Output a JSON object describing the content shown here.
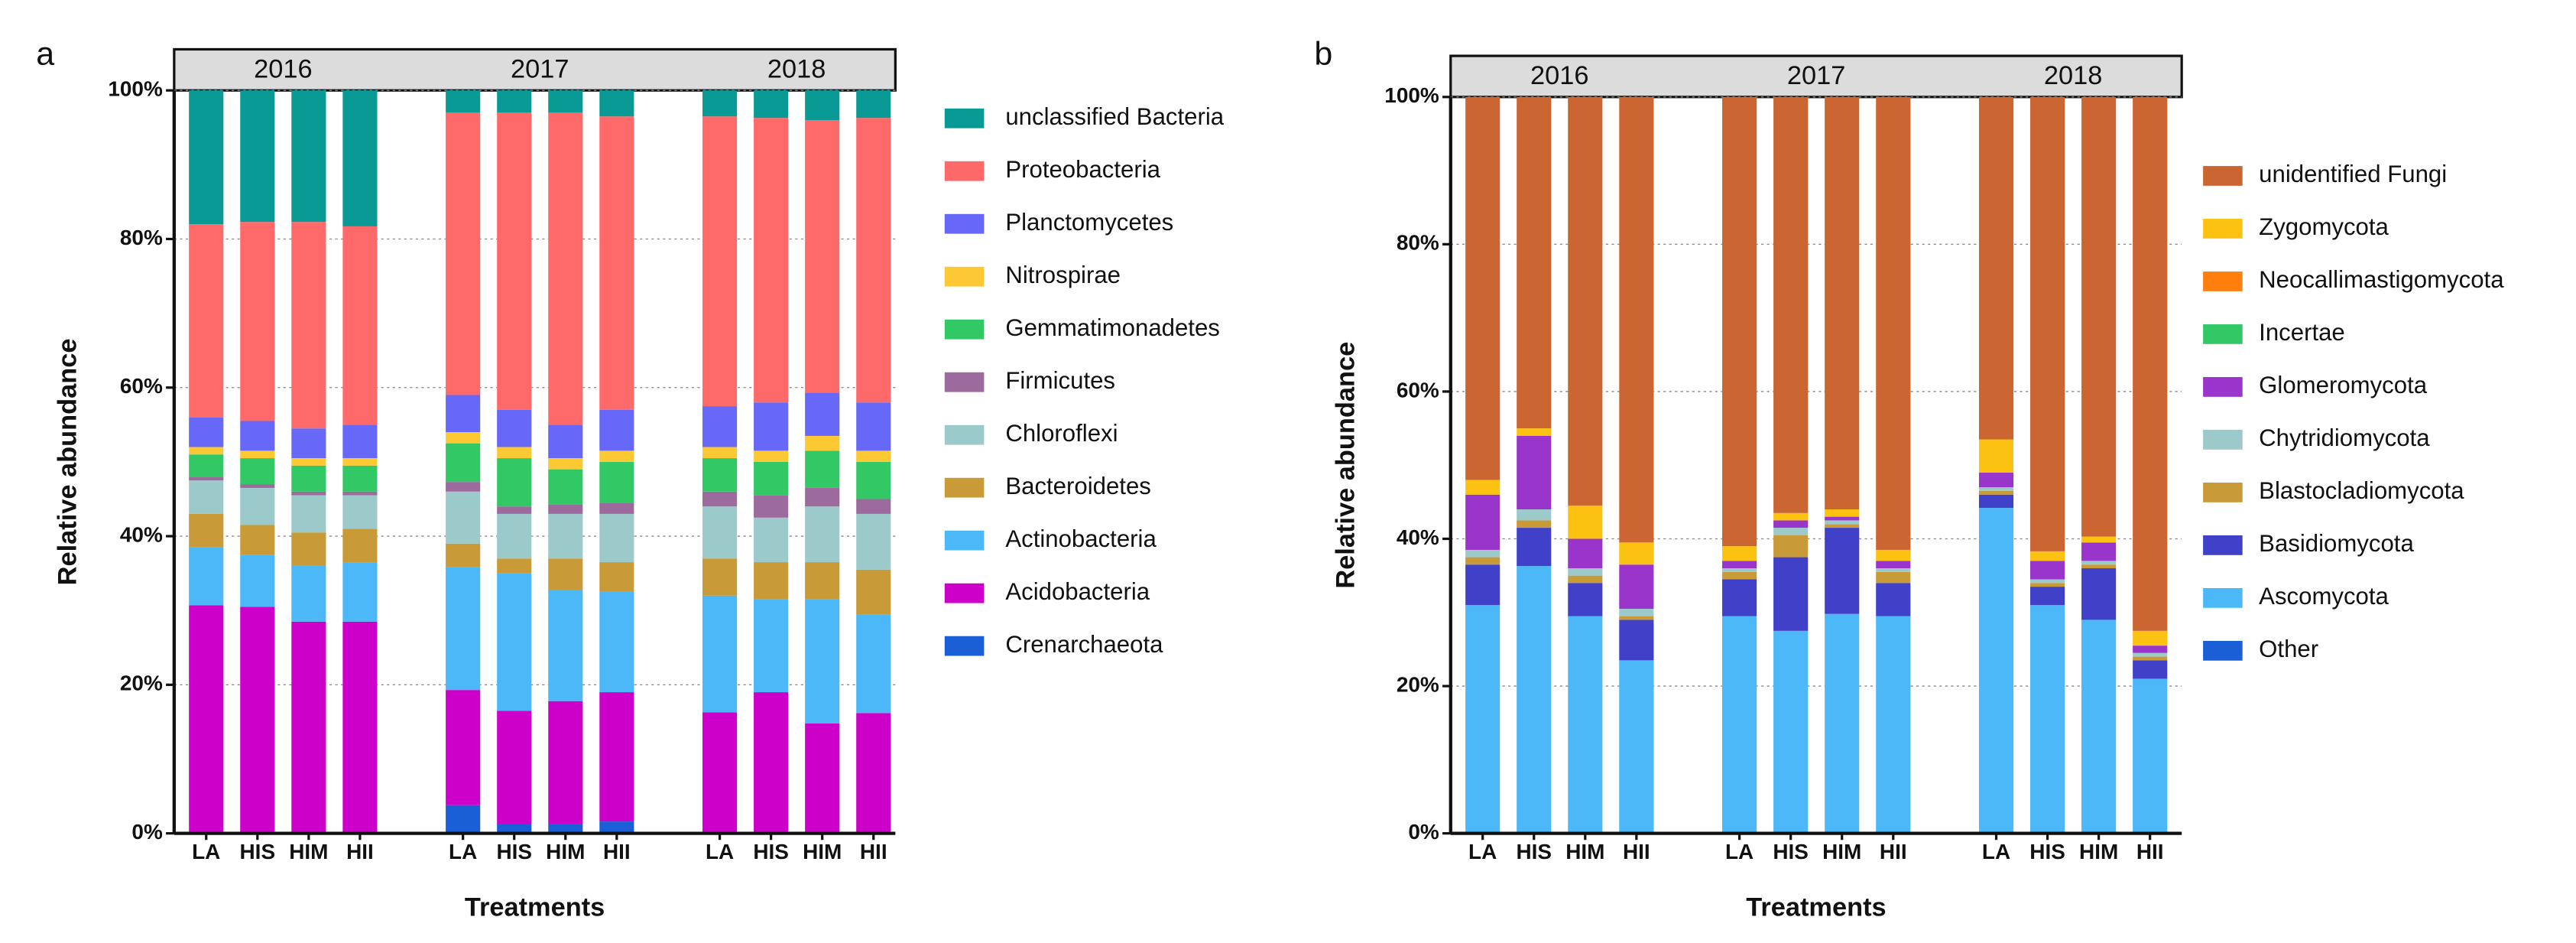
{
  "chart_data": [
    {
      "type": "bar",
      "stacked": true,
      "panel": "a",
      "ylabel": "Relative abundance",
      "xlabel": "Treatments",
      "groups": [
        "2016",
        "2017",
        "2018"
      ],
      "categories": [
        "LA",
        "HIS",
        "HIM",
        "HII",
        "LA",
        "HIS",
        "HIM",
        "HII",
        "LA",
        "HIS",
        "HIM",
        "HII"
      ],
      "ylim": [
        0,
        100
      ],
      "yticks": [
        {
          "value": 0,
          "label": "0%"
        },
        {
          "value": 20,
          "label": "20%"
        },
        {
          "value": 40,
          "label": "40%"
        },
        {
          "value": 60,
          "label": "60%"
        },
        {
          "value": 80,
          "label": "80%"
        },
        {
          "value": 100,
          "label": "100%"
        }
      ],
      "grid": true,
      "series": [
        {
          "name": "unclassified Bacteria",
          "color": "#0a9a96",
          "values": [
            18,
            17.7,
            17.7,
            18.3,
            3,
            3,
            3,
            3.5,
            3.5,
            3.7,
            4,
            3.7
          ]
        },
        {
          "name": "Proteobacteria",
          "color": "#fe6a6a",
          "values": [
            26,
            26.8,
            27.8,
            26.7,
            38,
            40,
            42,
            39.5,
            39,
            38.3,
            36.7,
            38.3
          ]
        },
        {
          "name": "Planctomycetes",
          "color": "#6868f8",
          "values": [
            4,
            4,
            4,
            4.5,
            5,
            5,
            4.5,
            5.5,
            5.5,
            6.5,
            5.8,
            6.5
          ]
        },
        {
          "name": "Nitrospirae",
          "color": "#fcc934",
          "values": [
            1,
            1,
            1,
            1,
            1.5,
            1.5,
            1.5,
            1.5,
            1.5,
            1.5,
            2,
            1.5
          ]
        },
        {
          "name": "Gemmatimonadetes",
          "color": "#33c866",
          "values": [
            3,
            3.5,
            3.5,
            3.5,
            5.2,
            6.5,
            4.7,
            5.5,
            4.5,
            4.5,
            5,
            5
          ]
        },
        {
          "name": "Firmicutes",
          "color": "#9c6a9c",
          "values": [
            0.5,
            0.5,
            0.5,
            0.5,
            1.3,
            1,
            1.3,
            1.5,
            2,
            3,
            2.5,
            2
          ]
        },
        {
          "name": "Chloroflexi",
          "color": "#9ccaca",
          "values": [
            4.5,
            5,
            5,
            4.5,
            7,
            6,
            6,
            6.5,
            7,
            6,
            7.5,
            7.5
          ]
        },
        {
          "name": "Bacteroidetes",
          "color": "#c99a38",
          "values": [
            4.5,
            4,
            4.5,
            4.5,
            3.2,
            2,
            4.2,
            4,
            5,
            5,
            5,
            6
          ]
        },
        {
          "name": "Actinobacteria",
          "color": "#4db8f8",
          "values": [
            7.8,
            7,
            7.5,
            8,
            16.5,
            18.5,
            15,
            13.5,
            15.7,
            12.5,
            16.7,
            13.3
          ]
        },
        {
          "name": "Acidobacteria",
          "color": "#cc00c8",
          "values": [
            30.5,
            30.3,
            28.3,
            28.3,
            15.5,
            15.3,
            16.5,
            17.4,
            16.1,
            18.8,
            14.6,
            16
          ]
        },
        {
          "name": "Crenarchaeota",
          "color": "#1a5fd6",
          "values": [
            0.2,
            0.2,
            0.2,
            0.2,
            3.8,
            1.2,
            1.3,
            1.6,
            0.2,
            0.2,
            0.2,
            0.2
          ]
        }
      ]
    },
    {
      "type": "bar",
      "stacked": true,
      "panel": "b",
      "ylabel": "Relative abundance",
      "xlabel": "Treatments",
      "groups": [
        "2016",
        "2017",
        "2018"
      ],
      "categories": [
        "LA",
        "HIS",
        "HIM",
        "HII",
        "LA",
        "HIS",
        "HIM",
        "HII",
        "LA",
        "HIS",
        "HIM",
        "HII"
      ],
      "ylim": [
        0,
        100
      ],
      "yticks": [
        {
          "value": 0,
          "label": "0%"
        },
        {
          "value": 20,
          "label": "20%"
        },
        {
          "value": 40,
          "label": "40%"
        },
        {
          "value": 60,
          "label": "60%"
        },
        {
          "value": 80,
          "label": "80%"
        },
        {
          "value": 100,
          "label": "100%"
        }
      ],
      "grid": true,
      "series": [
        {
          "name": "unidentified Fungi",
          "color": "#cb6632",
          "values": [
            52,
            45,
            55.5,
            60.5,
            61,
            56.5,
            56,
            61.5,
            46.5,
            61.7,
            59.7,
            72.5
          ]
        },
        {
          "name": "Zygomycota",
          "color": "#fcc212",
          "values": [
            2,
            1,
            4.5,
            3,
            2,
            1,
            1,
            1.5,
            4.5,
            1.3,
            0.8,
            2
          ]
        },
        {
          "name": "Neocallimastigomycota",
          "color": "#ff7f0e",
          "values": [
            0,
            0,
            0,
            0,
            0,
            0,
            0,
            0,
            0,
            0,
            0,
            0
          ]
        },
        {
          "name": "Incertae",
          "color": "#33c866",
          "values": [
            0,
            0,
            0,
            0,
            0,
            0,
            0,
            0,
            0,
            0,
            0,
            0
          ]
        },
        {
          "name": "Glomeromycota",
          "color": "#9a35cc",
          "values": [
            7.5,
            10,
            4,
            6,
            1,
            1,
            0.5,
            1,
            2,
            2.5,
            2.5,
            1
          ]
        },
        {
          "name": "Chytridiomycota",
          "color": "#9ccaca",
          "values": [
            1,
            1.5,
            1,
            1,
            0.5,
            1,
            0.5,
            0.5,
            0.5,
            0.5,
            0.5,
            0.5
          ]
        },
        {
          "name": "Blastocladiomycota",
          "color": "#c99a38",
          "values": [
            1,
            1,
            1,
            0.5,
            1,
            3,
            0.5,
            1.5,
            0.5,
            0.5,
            0.5,
            0.5
          ]
        },
        {
          "name": "Basidiomycota",
          "color": "#4040c8",
          "values": [
            5.5,
            5.2,
            4.5,
            5.5,
            5,
            10,
            11.7,
            4.5,
            1.8,
            2.5,
            7,
            2.5
          ]
        },
        {
          "name": "Ascomycota",
          "color": "#4db8f8",
          "values": [
            30.8,
            36.1,
            29.3,
            23.3,
            29.3,
            27.3,
            29.6,
            29.3,
            44,
            30.8,
            28.8,
            20.8
          ]
        },
        {
          "name": "Other",
          "color": "#1a5fd6",
          "values": [
            0.2,
            0.2,
            0.2,
            0.2,
            0.2,
            0.2,
            0.2,
            0.2,
            0.2,
            0.2,
            0.2,
            0.2
          ]
        }
      ]
    }
  ]
}
